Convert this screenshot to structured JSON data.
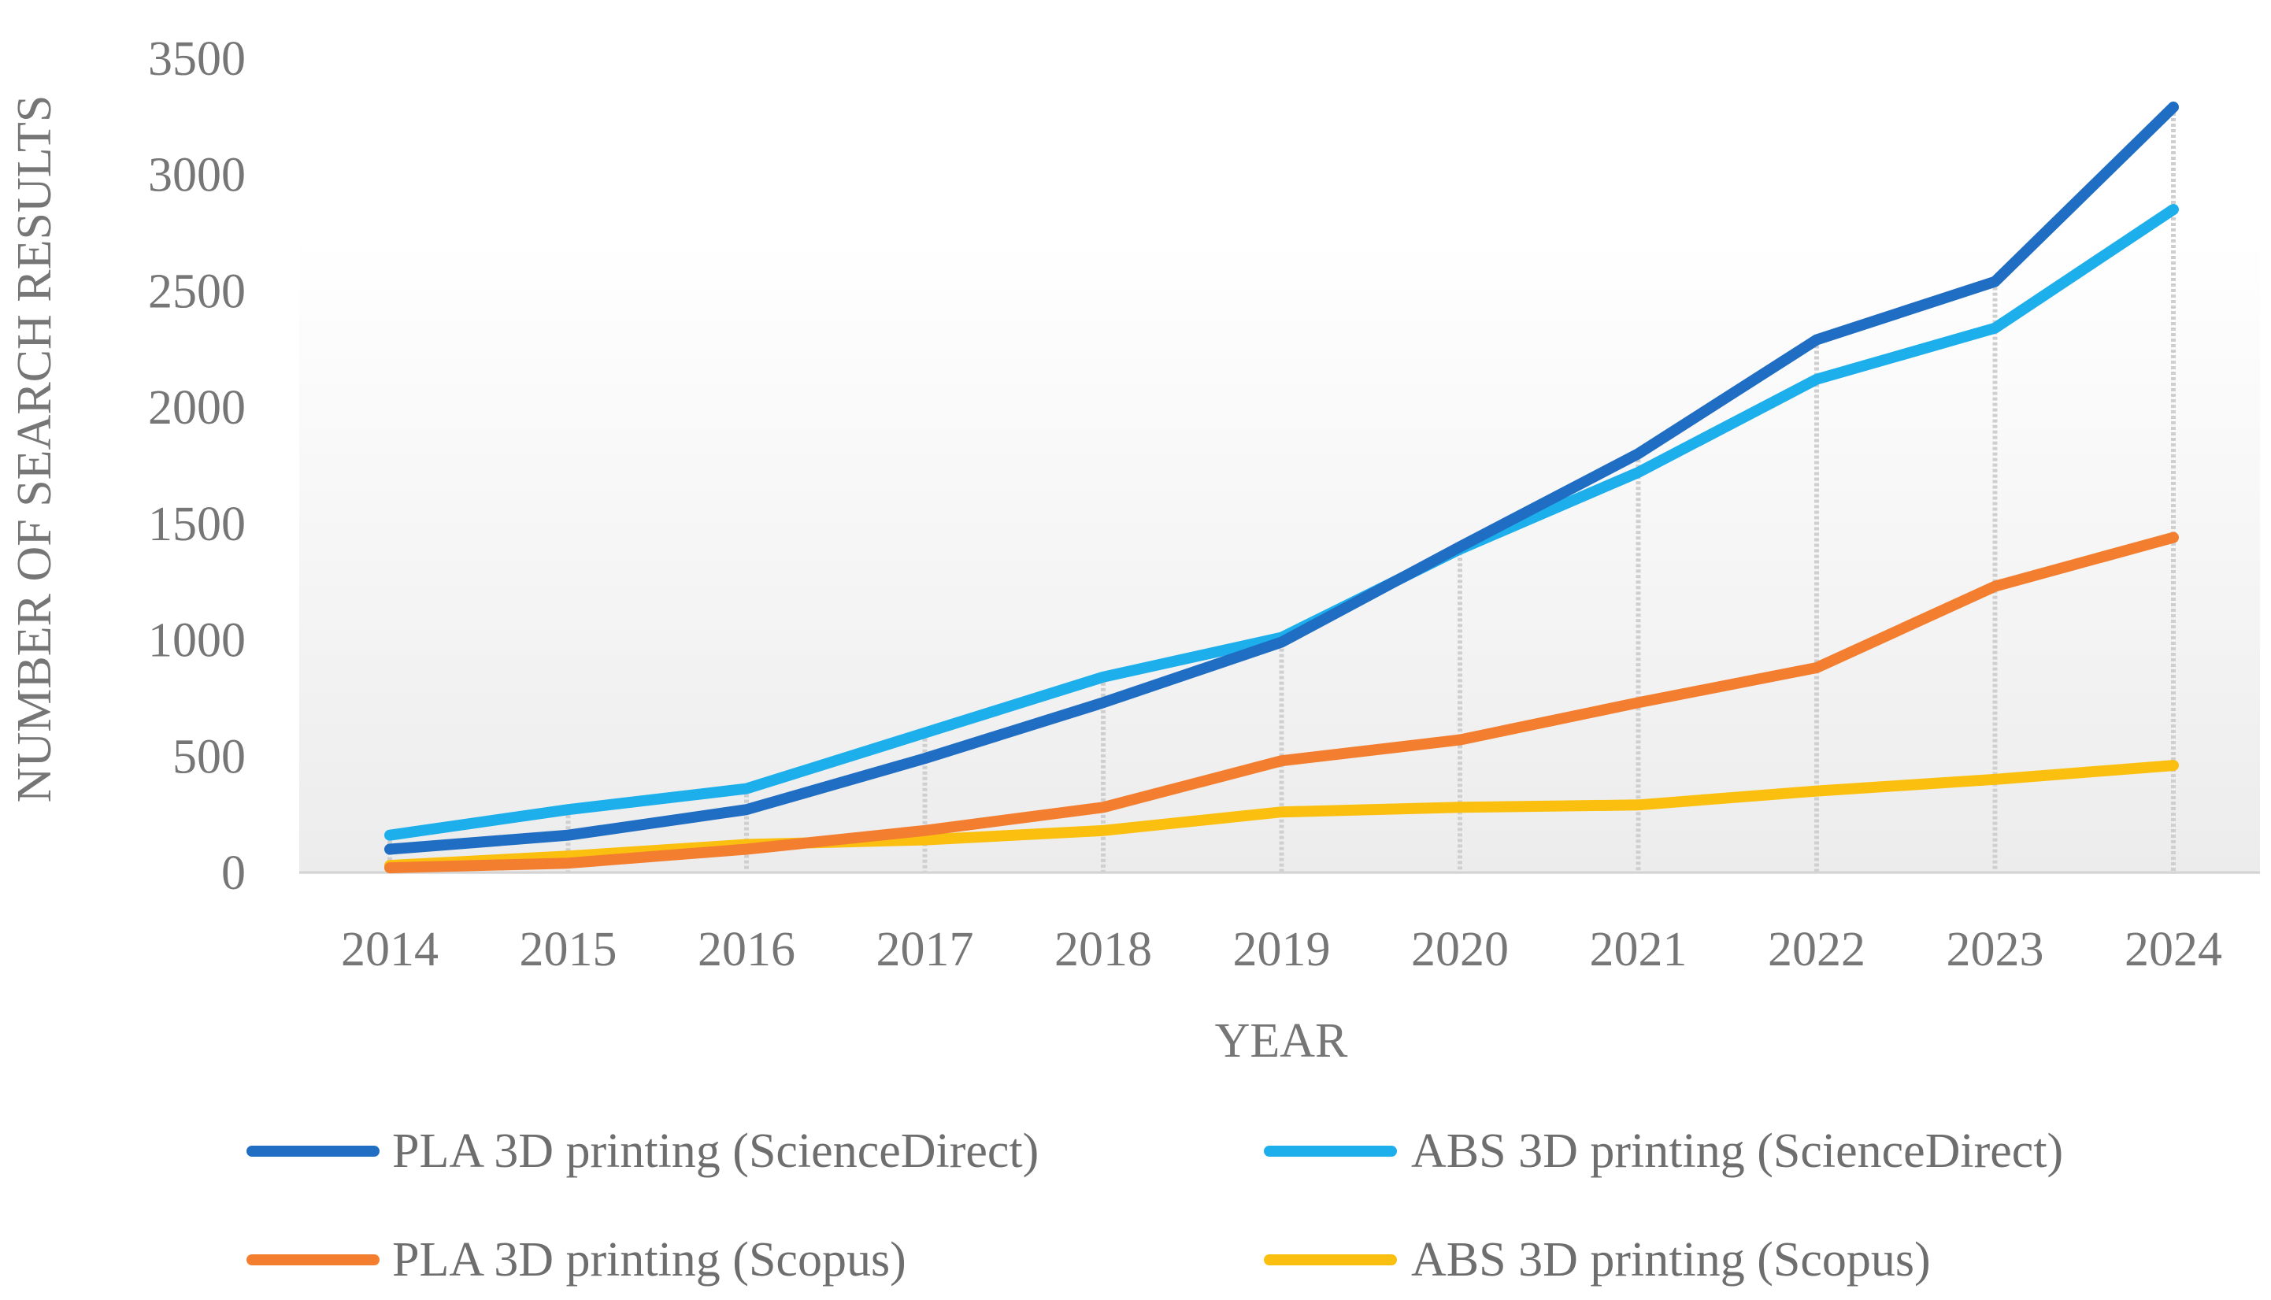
{
  "chart_data": {
    "type": "line",
    "title": "",
    "xlabel": "YEAR",
    "ylabel": "NUMBER OF  SEARCH RESULTS",
    "categories": [
      "2014",
      "2015",
      "2016",
      "2017",
      "2018",
      "2019",
      "2020",
      "2021",
      "2022",
      "2023",
      "2024"
    ],
    "ylim": [
      0,
      3500
    ],
    "yticks": [
      "0",
      "500",
      "1000",
      "1500",
      "2000",
      "2500",
      "3000",
      "3500"
    ],
    "ytick_values": [
      0,
      500,
      1000,
      1500,
      2000,
      2500,
      3000,
      3500
    ],
    "grid": "vertical drop lines",
    "legend_position": "bottom",
    "series": [
      {
        "name": "PLA 3D printing (ScienceDirect)",
        "color": "#1F6EC3",
        "values": [
          100,
          160,
          270,
          490,
          730,
          990,
          1400,
          1800,
          2290,
          2540,
          3290
        ]
      },
      {
        "name": "ABS 3D printing (ScienceDirect)",
        "color": "#1CAFEC",
        "values": [
          160,
          270,
          360,
          600,
          840,
          1010,
          1390,
          1720,
          2120,
          2340,
          2850
        ]
      },
      {
        "name": "PLA 3D printing (Scopus)",
        "color": "#F47E2F",
        "values": [
          20,
          40,
          100,
          180,
          280,
          480,
          570,
          730,
          880,
          1230,
          1440
        ]
      },
      {
        "name": "ABS 3D printing (Scopus)",
        "color": "#FBBF10",
        "values": [
          30,
          70,
          120,
          140,
          180,
          260,
          280,
          290,
          350,
          400,
          460
        ]
      }
    ]
  }
}
